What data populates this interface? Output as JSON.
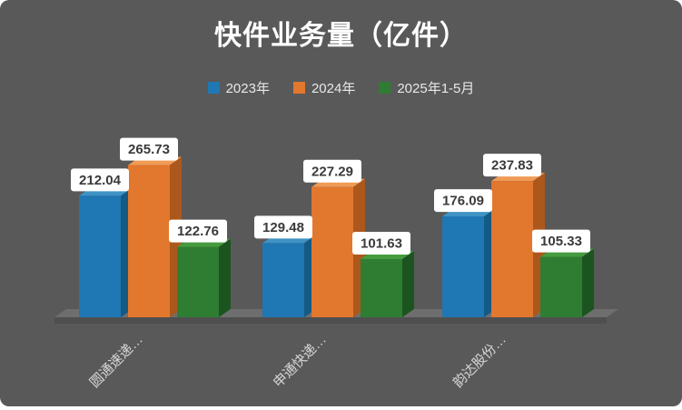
{
  "chart_data": {
    "type": "bar",
    "style": "3d-column",
    "title": "快件业务量（亿件）",
    "categories": [
      "圆通速递…",
      "申通快递…",
      "韵达股份…"
    ],
    "series": [
      {
        "name": "2023年",
        "values": [
          212.04,
          129.48,
          176.09
        ],
        "color": "#1F77B4",
        "color_top": "#3E93C4",
        "color_side": "#155A85"
      },
      {
        "name": "2024年",
        "values": [
          265.73,
          227.29,
          237.83
        ],
        "color": "#E2772E",
        "color_top": "#F09B55",
        "color_side": "#AC581C"
      },
      {
        "name": "2025年1-5月",
        "values": [
          122.76,
          101.63,
          105.33
        ],
        "color": "#2E7D32",
        "color_top": "#469B3F",
        "color_side": "#1C5420"
      }
    ],
    "value_labels": true,
    "legend_position": "top",
    "grid": false,
    "xlabel": "",
    "ylabel": "",
    "background": "#595959",
    "floor_color": "#6E6E6E",
    "floor_edge_color": "#4F4F4F",
    "label_box_color": "#FFFFFF",
    "label_text_color": "#3A3A3A",
    "axis_text_color": "#D6D6D6"
  }
}
